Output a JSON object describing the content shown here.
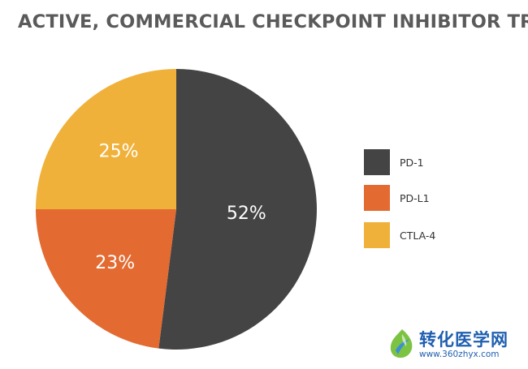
{
  "chart_data": {
    "type": "pie",
    "title": "ACTIVE, COMMERCIAL CHECKPOINT INHIBITOR TRIALS",
    "categories": [
      "PD-1",
      "PD-L1",
      "CTLA-4"
    ],
    "values": [
      52,
      23,
      25
    ],
    "labels": [
      "52%",
      "23%",
      "25%"
    ],
    "colors": [
      "#444444",
      "#e36a30",
      "#f0b13a"
    ],
    "legend_position": "right"
  },
  "watermark": {
    "name": "转化医学网",
    "url": "www.360zhyx.com"
  }
}
